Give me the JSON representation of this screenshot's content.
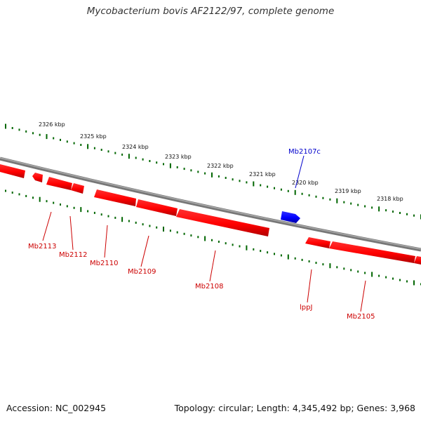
{
  "title": "Mycobacterium bovis AF2122/97, complete genome",
  "footer": {
    "accession": "Accession: NC_002945",
    "meta": "Topology: circular; Length: 4,345,492 bp; Genes: 3,968"
  },
  "colors": {
    "gene_forward": "#ff0000",
    "gene_reverse_highlight": "#0000ff",
    "backbone": "#808080",
    "ticks": "#006600"
  },
  "scale_labels": [
    "2326 kbp",
    "2325 kbp",
    "2324 kbp",
    "2323 kbp",
    "2322 kbp",
    "2321 kbp",
    "2320 kbp",
    "2319 kbp",
    "2318 kbp"
  ],
  "genes": [
    {
      "name": "Mb2113",
      "color": "#cc0000"
    },
    {
      "name": "Mb2112",
      "color": "#cc0000"
    },
    {
      "name": "Mb2110",
      "color": "#cc0000"
    },
    {
      "name": "Mb2109",
      "color": "#cc0000"
    },
    {
      "name": "Mb2108",
      "color": "#cc0000"
    },
    {
      "name": "Mb2107c",
      "color": "#0000cc"
    },
    {
      "name": "lppJ",
      "color": "#cc0000"
    },
    {
      "name": "Mb2105",
      "color": "#cc0000"
    }
  ]
}
